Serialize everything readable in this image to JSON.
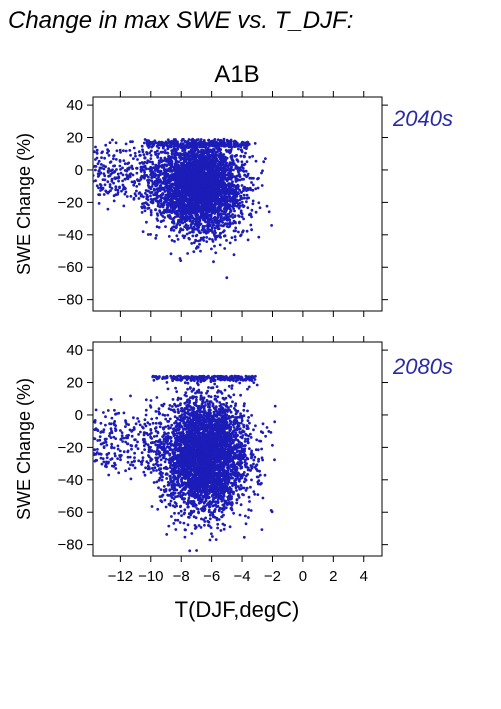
{
  "figure": {
    "title": "Change in max SWE vs. T_DJF:",
    "scenario": "A1B",
    "xlabel": "T(DJF,degC)",
    "ylabel": "SWE Change (%)"
  },
  "colors": {
    "points": "#1c1cb8",
    "period_label": "#2a2aa8",
    "axis": "#000000"
  },
  "chart_data": [
    {
      "type": "scatter",
      "panel": "2040s",
      "xlabel": "",
      "ylabel": "SWE Change (%)",
      "xlim": [
        -13.8,
        5.2
      ],
      "ylim": [
        -87,
        45
      ],
      "xticks": [
        -12,
        -10,
        -8,
        -6,
        -4,
        -2,
        0,
        2,
        4
      ],
      "yticks": [
        -80,
        -60,
        -40,
        -20,
        0,
        20,
        40
      ],
      "show_x_tick_labels": false,
      "grid": false,
      "point_cloud": {
        "n_points": 4500,
        "x_center": -6.8,
        "x_spread": 1.4,
        "x_min": -13.8,
        "x_max": -1.8,
        "y_center": -10,
        "y_spread": 14,
        "y_min": -82,
        "y_max": 19,
        "upper_band_y": 16
      }
    },
    {
      "type": "scatter",
      "panel": "2080s",
      "xlabel": "T(DJF,degC)",
      "ylabel": "SWE Change (%)",
      "xlim": [
        -13.8,
        5.2
      ],
      "ylim": [
        -87,
        45
      ],
      "xticks": [
        -12,
        -10,
        -8,
        -6,
        -4,
        -2,
        0,
        2,
        4
      ],
      "yticks": [
        -80,
        -60,
        -40,
        -20,
        0,
        20,
        40
      ],
      "show_x_tick_labels": true,
      "grid": false,
      "point_cloud": {
        "n_points": 4500,
        "x_center": -6.4,
        "x_spread": 1.4,
        "x_min": -13.8,
        "x_max": -1.6,
        "y_center": -25,
        "y_spread": 17,
        "y_min": -85,
        "y_max": 24,
        "upper_band_y": 23
      }
    }
  ]
}
